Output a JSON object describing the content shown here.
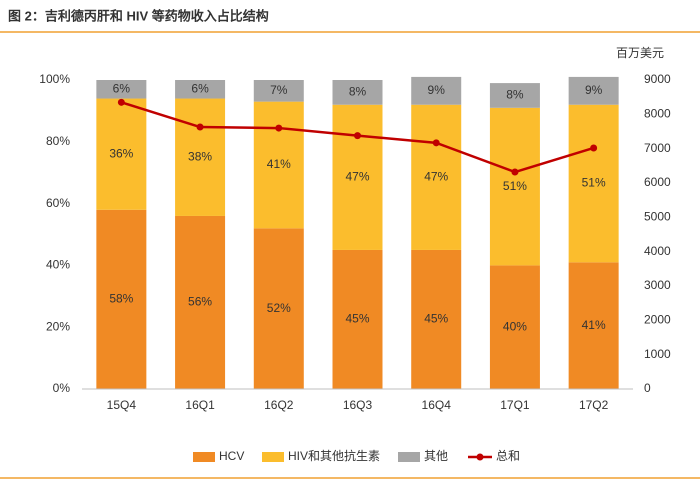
{
  "chart_data": {
    "type": "stacked-bar-line",
    "title": "图 2：吉利德丙肝和 HIV 等药物收入占比结构",
    "y2_label": "百万美元",
    "categories": [
      "15Q4",
      "16Q1",
      "16Q2",
      "16Q3",
      "16Q4",
      "17Q1",
      "17Q2"
    ],
    "series": [
      {
        "name": "HCV",
        "color": "#f08a24",
        "values": [
          58,
          56,
          52,
          45,
          45,
          40,
          41
        ],
        "value_labels": [
          "58%",
          "56%",
          "52%",
          "45%",
          "45%",
          "40%",
          "41%"
        ]
      },
      {
        "name": "HIV和其他抗生素",
        "color": "#fbbd2d",
        "values": [
          36,
          38,
          41,
          47,
          47,
          51,
          51
        ],
        "value_labels": [
          "36%",
          "38%",
          "41%",
          "47%",
          "47%",
          "51%",
          "51%"
        ]
      },
      {
        "name": "其他",
        "color": "#a6a6a6",
        "values": [
          6,
          6,
          7,
          8,
          9,
          8,
          9
        ],
        "value_labels": [
          "6%",
          "6%",
          "7%",
          "8%",
          "9%",
          "8%",
          "9%"
        ]
      },
      {
        "name": "总和",
        "color": "#c00000",
        "axis": "y2",
        "values": [
          8350,
          7630,
          7600,
          7380,
          7170,
          6320,
          7020
        ]
      }
    ],
    "ylim": [
      0,
      100
    ],
    "yticks": [
      {
        "value": 0,
        "label": "0%"
      },
      {
        "value": 20,
        "label": "20%"
      },
      {
        "value": 40,
        "label": "40%"
      },
      {
        "value": 60,
        "label": "60%"
      },
      {
        "value": 80,
        "label": "80%"
      },
      {
        "value": 100,
        "label": "100%"
      }
    ],
    "y2lim": [
      0,
      9000
    ],
    "y2ticks": [
      0,
      1000,
      2000,
      3000,
      4000,
      5000,
      6000,
      7000,
      8000,
      9000
    ],
    "legend": "bottom"
  }
}
